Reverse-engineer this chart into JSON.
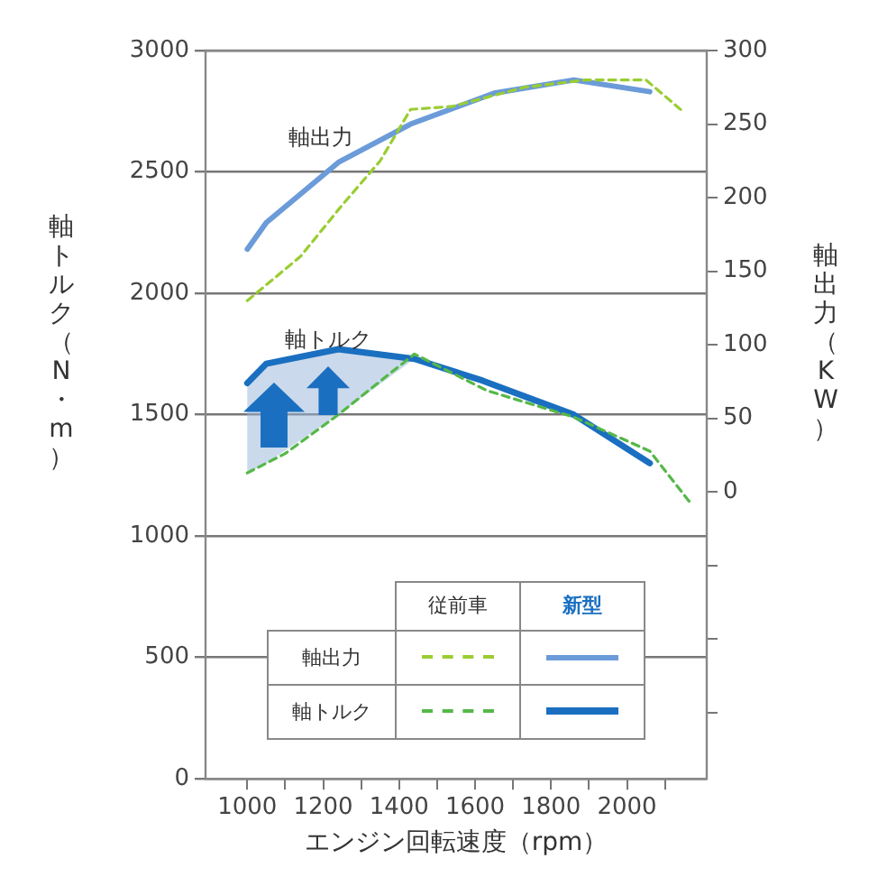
{
  "chart_data": {
    "type": "line",
    "xlabel": "エンジン回転速度（rpm）",
    "ylabel": "軸トルク（N・m）",
    "y2label": "軸出力（KW）",
    "xlim": [
      890,
      2210
    ],
    "xticks": [
      1000,
      {
        "value": 1100,
        "label": null
      },
      1200,
      {
        "value": 1300,
        "label": null
      },
      1400,
      {
        "value": 1500,
        "label": null
      },
      1600,
      {
        "value": 1700,
        "label": null
      },
      1800,
      {
        "value": 1900,
        "label": null
      },
      2000,
      {
        "value": 2100,
        "label": null
      }
    ],
    "ylim": [
      0,
      3000
    ],
    "yticks": [
      0,
      500,
      1000,
      1500,
      2000,
      2500,
      3000
    ],
    "y2lim": [
      -195,
      300
    ],
    "y2ticks": [
      {
        "value": -150,
        "label": null
      },
      {
        "value": -100,
        "label": null
      },
      {
        "value": -50,
        "label": null
      },
      0,
      50,
      100,
      150,
      200,
      250,
      300
    ],
    "grid": "y",
    "line_style": "solid",
    "marker": "none",
    "series": [
      {
        "color": "#9acd32",
        "axis": "y2",
        "line_style": "dashed",
        "x": [
          1000,
          1140,
          1250,
          1350,
          1430,
          1540,
          1730,
          1890,
          2050,
          2150
        ],
        "values": [
          130,
          160,
          195,
          225,
          260,
          262,
          275,
          280,
          280,
          258
        ]
      },
      {
        "color": "#6b9bd9",
        "axis": "y2",
        "x": [
          1000,
          1050,
          1240,
          1430,
          1650,
          1860,
          2060
        ],
        "values": [
          165,
          183,
          224,
          250,
          271,
          280,
          272
        ]
      },
      {
        "color": "#55b848",
        "line_style": "dashed",
        "x": [
          1000,
          1100,
          1240,
          1440,
          1630,
          1860,
          2060,
          2170
        ],
        "values": [
          1260,
          1340,
          1500,
          1750,
          1600,
          1490,
          1350,
          1130
        ]
      },
      {
        "color": "#1a6fc0",
        "x": [
          1000,
          1050,
          1240,
          1440,
          1620,
          1860,
          2060
        ],
        "values": [
          1630,
          1710,
          1770,
          1730,
          1640,
          1500,
          1300
        ],
        "lower": [
          1260,
          1300,
          1500,
          1730,
          null,
          null,
          null
        ],
        "upper": [
          1630,
          1710,
          1770,
          1730,
          null,
          null,
          null
        ]
      }
    ],
    "annotations": [
      "軸出力",
      "軸トルク",
      "軸出力",
      "軸トルク",
      "従前車",
      "新型"
    ]
  }
}
